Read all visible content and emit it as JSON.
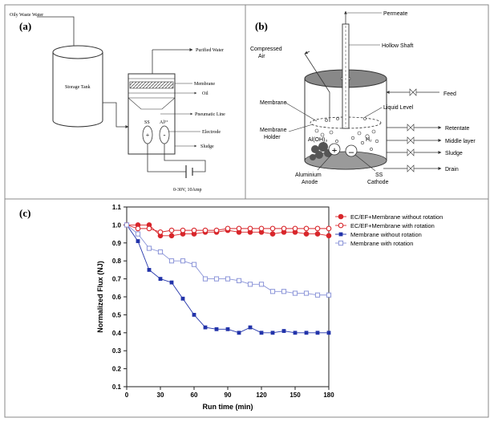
{
  "panel_a": {
    "label": "(a)",
    "oily_waste_water": "Oily Waste Water",
    "storage_tank": "Storage Tank",
    "purified_water": "Purified Water",
    "membrane": "Membrane",
    "oil": "Oil",
    "pneumatic_line": "Pneumatic Line",
    "ss": "SS",
    "al": "Al³⁺",
    "plus": "+",
    "minus": "-",
    "electrode": "Electrode",
    "sludge": "Sludge",
    "power": "0-30V, 10Amp"
  },
  "panel_b": {
    "label": "(b)",
    "permeate": "Permeate",
    "compressed_air": "Compressed",
    "compressed_air_2": "Air",
    "hollow_shaft": "Hollow Shaft",
    "feed": "Feed",
    "membrane": "Membrane",
    "liquid_level": "Liquid Level",
    "membrane_holder": "Membrane",
    "membrane_holder_2": "Holder",
    "aloh": "Al(OH)₃",
    "h2": "H₂",
    "plus": "+",
    "minus": "–",
    "aluminium_anode": "Aluminium",
    "aluminium_anode_2": "Anode",
    "ss_cathode": "SS",
    "ss_cathode_2": "Cathode",
    "retentate": "Retentate",
    "middle_layer": "Middle layer",
    "sludge": "Sludge",
    "drain": "Drain"
  },
  "panel_c": {
    "label": "(c)"
  },
  "colors": {
    "red": "#d8262b",
    "blue": "#2233aa",
    "blue_open": "#8a94d8"
  },
  "chart_data": {
    "type": "scatter",
    "xlabel": "Run time (min)",
    "ylabel": "Normalized Flux (NJ)",
    "xlim": [
      0,
      180
    ],
    "ylim": [
      0.1,
      1.1
    ],
    "xticks": [
      0,
      30,
      60,
      90,
      120,
      150,
      180
    ],
    "yticks": [
      0.1,
      0.2,
      0.3,
      0.4,
      0.5,
      0.6,
      0.7,
      0.8,
      0.9,
      1.0,
      1.1
    ],
    "legend_position": "top-right",
    "series": [
      {
        "name": "EC/EF+Membrane without rotation",
        "marker": "filled-circle",
        "color": "#d8262b",
        "x": [
          0,
          10,
          20,
          30,
          40,
          50,
          60,
          70,
          80,
          90,
          100,
          110,
          120,
          130,
          140,
          150,
          160,
          170,
          180
        ],
        "y": [
          1.0,
          1.0,
          1.0,
          0.94,
          0.94,
          0.95,
          0.95,
          0.96,
          0.96,
          0.97,
          0.96,
          0.96,
          0.96,
          0.95,
          0.96,
          0.96,
          0.95,
          0.95,
          0.94
        ]
      },
      {
        "name": "EC/EF+Membrane with rotation",
        "marker": "open-circle",
        "color": "#d8262b",
        "x": [
          0,
          10,
          20,
          30,
          40,
          50,
          60,
          70,
          80,
          90,
          100,
          110,
          120,
          130,
          140,
          150,
          160,
          170,
          180
        ],
        "y": [
          1.0,
          0.98,
          0.98,
          0.96,
          0.97,
          0.97,
          0.97,
          0.97,
          0.97,
          0.98,
          0.98,
          0.98,
          0.98,
          0.98,
          0.98,
          0.98,
          0.98,
          0.98,
          0.98
        ]
      },
      {
        "name": "Membrane without rotation",
        "marker": "filled-square",
        "color": "#2233aa",
        "x": [
          0,
          10,
          20,
          30,
          40,
          50,
          60,
          70,
          80,
          90,
          100,
          110,
          120,
          130,
          140,
          150,
          160,
          170,
          180
        ],
        "y": [
          1.0,
          0.91,
          0.75,
          0.7,
          0.68,
          0.59,
          0.5,
          0.43,
          0.42,
          0.42,
          0.4,
          0.43,
          0.4,
          0.4,
          0.41,
          0.4,
          0.4,
          0.4,
          0.4
        ]
      },
      {
        "name": "Membrane with rotation",
        "marker": "open-square",
        "color": "#8a94d8",
        "x": [
          0,
          10,
          20,
          30,
          40,
          50,
          60,
          70,
          80,
          90,
          100,
          110,
          120,
          130,
          140,
          150,
          160,
          170,
          180
        ],
        "y": [
          1.0,
          0.95,
          0.87,
          0.85,
          0.8,
          0.8,
          0.78,
          0.7,
          0.7,
          0.7,
          0.69,
          0.67,
          0.67,
          0.63,
          0.63,
          0.62,
          0.62,
          0.61,
          0.61
        ]
      }
    ]
  }
}
